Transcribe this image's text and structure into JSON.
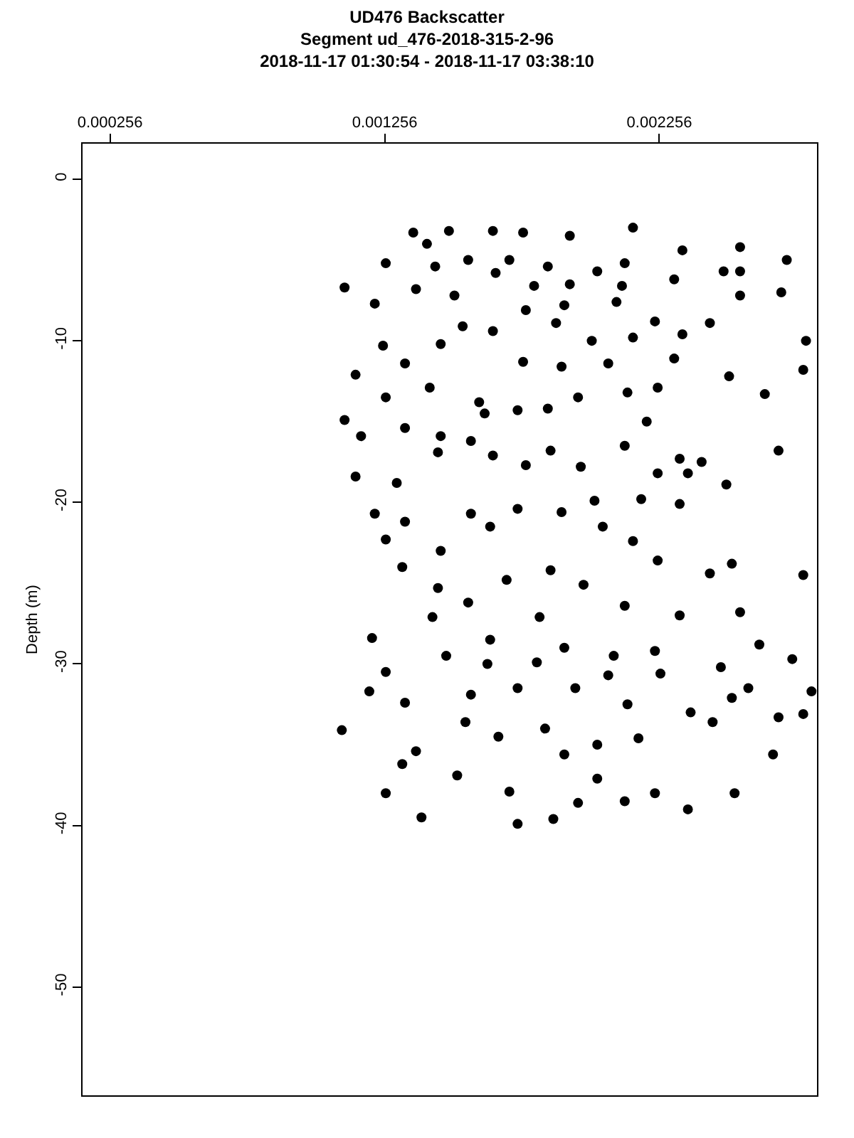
{
  "chart_data": {
    "type": "scatter",
    "title": "UD476 Backscatter",
    "subtitle": "Segment ud_476-2018-315-2-96\n2018-11-17 01:30:54 - 2018-11-17 03:38:10",
    "ylabel": "Depth (m)",
    "x": [
      0.00136,
      0.00149,
      0.00165,
      0.00176,
      0.00193,
      0.00216,
      0.00234,
      0.00255,
      0.00255,
      0.00272,
      0.00255,
      0.0027,
      0.00111,
      0.00126,
      0.00141,
      0.00144,
      0.00156,
      0.00171,
      0.00185,
      0.00203,
      0.00213,
      0.00231,
      0.00249,
      0.00122,
      0.00137,
      0.00151,
      0.00166,
      0.0018,
      0.00193,
      0.00212,
      0.00191,
      0.0021,
      0.00224,
      0.00234,
      0.00244,
      0.00279,
      0.00278,
      0.00125,
      0.00133,
      0.00146,
      0.00154,
      0.00165,
      0.00177,
      0.00188,
      0.00201,
      0.00216,
      0.00231,
      0.00251,
      0.00264,
      0.00115,
      0.00126,
      0.00142,
      0.0016,
      0.00176,
      0.0019,
      0.00207,
      0.00214,
      0.00225,
      0.00111,
      0.00117,
      0.00133,
      0.00146,
      0.00162,
      0.00174,
      0.00185,
      0.00196,
      0.00221,
      0.00213,
      0.00233,
      0.00241,
      0.00269,
      0.00115,
      0.00122,
      0.0013,
      0.00145,
      0.00157,
      0.00165,
      0.00177,
      0.00186,
      0.00197,
      0.00202,
      0.00225,
      0.00236,
      0.0025,
      0.00233,
      0.00219,
      0.00126,
      0.00133,
      0.00146,
      0.00157,
      0.00164,
      0.00174,
      0.0019,
      0.00205,
      0.00216,
      0.00225,
      0.00244,
      0.00252,
      0.00278,
      0.00132,
      0.00145,
      0.00156,
      0.0017,
      0.00186,
      0.00198,
      0.00213,
      0.00233,
      0.00255,
      0.00262,
      0.00274,
      0.00121,
      0.00143,
      0.00164,
      0.00182,
      0.00191,
      0.00209,
      0.00224,
      0.00248,
      0.00126,
      0.00148,
      0.00163,
      0.00181,
      0.00207,
      0.00226,
      0.00258,
      0.00281,
      0.0012,
      0.00133,
      0.00157,
      0.00174,
      0.00195,
      0.00214,
      0.00237,
      0.00252,
      0.00278,
      0.0011,
      0.00137,
      0.00155,
      0.00167,
      0.00184,
      0.00203,
      0.00218,
      0.00245,
      0.00269,
      0.00267,
      0.00132,
      0.00152,
      0.00171,
      0.00191,
      0.00203,
      0.00224,
      0.00236,
      0.00253,
      0.00126,
      0.00139,
      0.00174,
      0.00187,
      0.00213,
      0.00196
    ],
    "values": [
      -3.3,
      -3.2,
      -3.2,
      -3.3,
      -3.5,
      -3.0,
      -4.4,
      -4.2,
      -5.7,
      -5.0,
      -7.2,
      -7.0,
      -6.7,
      -5.2,
      -4.0,
      -5.4,
      -5.0,
      -5.0,
      -5.4,
      -5.7,
      -5.2,
      -6.2,
      -5.7,
      -7.7,
      -6.8,
      -7.2,
      -5.8,
      -6.6,
      -6.5,
      -6.6,
      -7.8,
      -7.6,
      -8.8,
      -9.6,
      -8.9,
      -10.0,
      -11.8,
      -10.3,
      -11.4,
      -10.2,
      -9.1,
      -9.4,
      -8.1,
      -8.9,
      -10.0,
      -9.8,
      -11.1,
      -12.2,
      -13.3,
      -12.1,
      -13.5,
      -12.9,
      -13.8,
      -11.3,
      -11.6,
      -11.4,
      -13.2,
      -12.9,
      -14.9,
      -15.9,
      -15.4,
      -15.9,
      -14.5,
      -14.3,
      -14.2,
      -13.5,
      -15.0,
      -16.5,
      -17.3,
      -17.5,
      -16.8,
      -18.4,
      -20.7,
      -18.8,
      -16.9,
      -16.2,
      -17.1,
      -17.7,
      -16.8,
      -17.8,
      -19.9,
      -18.2,
      -18.2,
      -18.9,
      -20.1,
      -19.8,
      -22.3,
      -21.2,
      -23.0,
      -20.7,
      -21.5,
      -20.4,
      -20.6,
      -21.5,
      -22.4,
      -23.6,
      -24.4,
      -23.8,
      -24.5,
      -24.0,
      -25.3,
      -26.2,
      -24.8,
      -24.2,
      -25.1,
      -26.4,
      -27.0,
      -26.8,
      -28.8,
      -29.7,
      -28.4,
      -27.1,
      -28.5,
      -27.1,
      -29.0,
      -29.5,
      -29.2,
      -30.2,
      -30.5,
      -29.5,
      -30.0,
      -29.9,
      -30.7,
      -30.6,
      -31.5,
      -31.7,
      -31.7,
      -32.4,
      -31.9,
      -31.5,
      -31.5,
      -32.5,
      -33.0,
      -32.1,
      -33.1,
      -34.1,
      -35.4,
      -33.6,
      -34.5,
      -34.0,
      -35.0,
      -34.6,
      -33.6,
      -33.3,
      -35.6,
      -36.2,
      -36.9,
      -37.9,
      -35.6,
      -37.1,
      -38.0,
      -39.0,
      -38.0,
      -38.0,
      -39.5,
      -39.9,
      -39.6,
      -38.5,
      -38.6
    ],
    "color": "#000000",
    "marker": "circle",
    "xlim": [
      0.000156,
      0.00283
    ],
    "xticks": [
      0.000256,
      0.001256,
      0.002256
    ],
    "ylim": [
      -56.7,
      2.2
    ],
    "yticks": [
      0,
      -10,
      -20,
      -30,
      -40,
      -50
    ],
    "legend": false
  }
}
